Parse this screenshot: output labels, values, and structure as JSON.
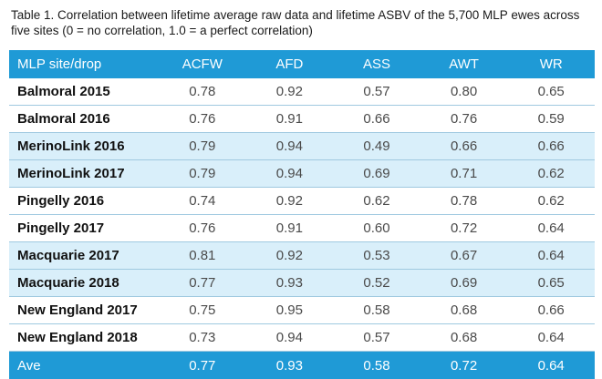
{
  "caption": "Table 1. Correlation between lifetime average raw data and lifetime ASBV of the 5,700 MLP ewes across five sites (0 = no correlation, 1.0 = a perfect correlation)",
  "table": {
    "headers": [
      "MLP site/drop",
      "ACFW",
      "AFD",
      "ASS",
      "AWT",
      "WR"
    ],
    "rows": [
      {
        "site": "Balmoral 2015",
        "acfw": "0.78",
        "afd": "0.92",
        "ass": "0.57",
        "awt": "0.80",
        "wr": "0.65"
      },
      {
        "site": "Balmoral 2016",
        "acfw": "0.76",
        "afd": "0.91",
        "ass": "0.66",
        "awt": "0.76",
        "wr": "0.59"
      },
      {
        "site": "MerinoLink 2016",
        "acfw": "0.79",
        "afd": "0.94",
        "ass": "0.49",
        "awt": "0.66",
        "wr": "0.66"
      },
      {
        "site": "MerinoLink 2017",
        "acfw": "0.79",
        "afd": "0.94",
        "ass": "0.69",
        "awt": "0.71",
        "wr": "0.62"
      },
      {
        "site": "Pingelly 2016",
        "acfw": "0.74",
        "afd": "0.92",
        "ass": "0.62",
        "awt": "0.78",
        "wr": "0.62"
      },
      {
        "site": "Pingelly 2017",
        "acfw": "0.76",
        "afd": "0.91",
        "ass": "0.60",
        "awt": "0.72",
        "wr": "0.64"
      },
      {
        "site": "Macquarie 2017",
        "acfw": "0.81",
        "afd": "0.92",
        "ass": "0.53",
        "awt": "0.67",
        "wr": "0.64"
      },
      {
        "site": "Macquarie 2018",
        "acfw": "0.77",
        "afd": "0.93",
        "ass": "0.52",
        "awt": "0.69",
        "wr": "0.65"
      },
      {
        "site": "New England 2017",
        "acfw": "0.75",
        "afd": "0.95",
        "ass": "0.58",
        "awt": "0.68",
        "wr": "0.66"
      },
      {
        "site": "New England 2018",
        "acfw": "0.73",
        "afd": "0.94",
        "ass": "0.57",
        "awt": "0.68",
        "wr": "0.64"
      }
    ],
    "average": {
      "site": "Ave",
      "acfw": "0.77",
      "afd": "0.93",
      "ass": "0.58",
      "awt": "0.72",
      "wr": "0.64"
    }
  },
  "colors": {
    "header_bg": "#1f9ad6",
    "stripe_bg": "#d9effa",
    "rule": "#9fc9e0"
  }
}
